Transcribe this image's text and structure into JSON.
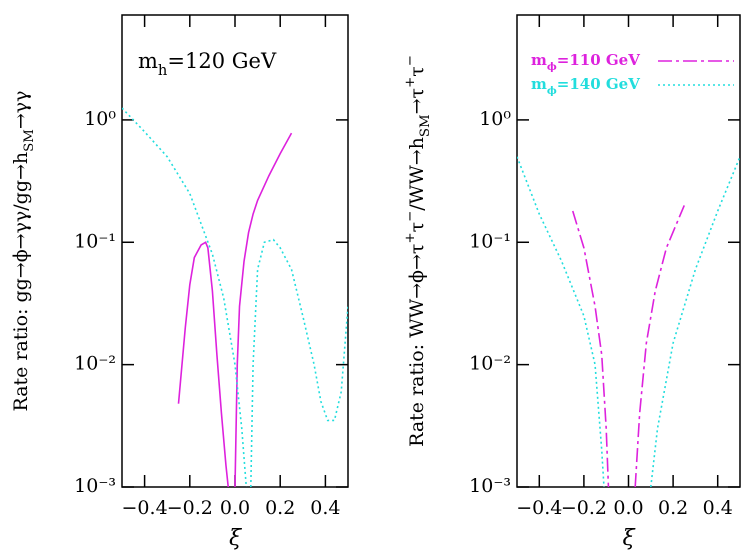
{
  "chart_data": [
    {
      "type": "line",
      "scale": "log",
      "xlabel": "ξ",
      "ylabel": [
        {
          "text": "Rate ratio: gg→ϕ→γγ/gg→h"
        },
        {
          "text": "SM",
          "shift": "sub"
        },
        {
          "text": "→γγ"
        }
      ],
      "annotation": [
        {
          "text": "m"
        },
        {
          "text": "h",
          "shift": "sub"
        },
        {
          "text": "=120 GeV"
        }
      ],
      "xlim": [
        -0.5,
        0.5
      ],
      "ylim": [
        0.001,
        7.2
      ],
      "xticks": [
        {
          "value": -0.4,
          "label": "−0.4"
        },
        {
          "value": -0.2,
          "label": "−0.2"
        },
        {
          "value": 0.0,
          "label": "0.0"
        },
        0.2,
        0.4
      ],
      "yticks": [
        {
          "value": 0.001,
          "label": "10⁻³"
        },
        {
          "value": 0.01,
          "label": "10⁻²"
        },
        {
          "value": 0.1,
          "label": "10⁻¹"
        },
        {
          "value": 1,
          "label": "10⁰"
        }
      ],
      "series": [
        {
          "color": "#dd22dd",
          "style": "solid",
          "x": [
            -0.25,
            -0.22,
            -0.2,
            -0.18,
            -0.15,
            -0.13,
            -0.12,
            -0.1,
            -0.08,
            -0.06,
            -0.04,
            -0.03,
            -0.015,
            0.0,
            0.01,
            0.02,
            0.04,
            0.06,
            0.08,
            0.1,
            0.15,
            0.2,
            0.25
          ],
          "values": [
            0.0048,
            0.02,
            0.045,
            0.075,
            0.095,
            0.1,
            0.09,
            0.04,
            0.012,
            0.004,
            0.0015,
            0.001,
            null,
            0.001,
            0.01,
            0.03,
            0.07,
            0.12,
            0.17,
            0.22,
            0.35,
            0.53,
            0.78
          ]
        },
        {
          "color": "#22dddd",
          "style": "dotted",
          "x": [
            -0.5,
            -0.4,
            -0.3,
            -0.2,
            -0.1,
            -0.05,
            0.0,
            0.03,
            0.05,
            0.06,
            0.07,
            0.08,
            0.1,
            0.13,
            0.17,
            0.2,
            0.25,
            0.3,
            0.35,
            0.38,
            0.41,
            0.44,
            0.47,
            0.5
          ],
          "values": [
            1.25,
            0.8,
            0.5,
            0.25,
            0.08,
            0.035,
            0.01,
            0.003,
            0.001,
            null,
            0.001,
            0.01,
            0.06,
            0.1,
            0.105,
            0.09,
            0.06,
            0.025,
            0.01,
            0.005,
            0.0035,
            0.0035,
            0.006,
            0.03
          ]
        }
      ]
    },
    {
      "type": "line",
      "scale": "log",
      "xlabel": "ξ",
      "legend": "upper right",
      "ylabel": [
        {
          "text": "Rate ratio: WW→ϕ→τ"
        },
        {
          "text": "+",
          "shift": "sup"
        },
        {
          "text": "τ"
        },
        {
          "text": "−",
          "shift": "sup"
        },
        {
          "text": "/WW→h"
        },
        {
          "text": "SM",
          "shift": "sub"
        },
        {
          "text": "→τ"
        },
        {
          "text": "+",
          "shift": "sup"
        },
        {
          "text": "τ"
        },
        {
          "text": "−",
          "shift": "sup"
        }
      ],
      "xlim": [
        -0.5,
        0.5
      ],
      "ylim": [
        0.001,
        7.2
      ],
      "xticks": [
        {
          "value": -0.4,
          "label": "−0.4"
        },
        {
          "value": -0.2,
          "label": "−0.2"
        },
        {
          "value": 0.0,
          "label": "0.0"
        },
        0.2,
        0.4
      ],
      "yticks": [
        {
          "value": 0.001,
          "label": "10⁻³"
        },
        {
          "value": 0.01,
          "label": "10⁻²"
        },
        {
          "value": 0.1,
          "label": "10⁻¹"
        },
        {
          "value": 1,
          "label": "10⁰"
        }
      ],
      "series": [
        {
          "name": [
            {
              "text": "m"
            },
            {
              "text": "ϕ",
              "shift": "sub"
            },
            {
              "text": "=110 GeV"
            }
          ],
          "color": "#dd22dd",
          "style": "dashdot",
          "x": [
            -0.25,
            -0.2,
            -0.15,
            -0.12,
            -0.1,
            -0.09,
            0.0,
            0.03,
            0.05,
            0.08,
            0.12,
            0.17,
            0.25
          ],
          "values": [
            0.18,
            0.09,
            0.03,
            0.012,
            0.003,
            0.001,
            null,
            0.001,
            0.004,
            0.015,
            0.04,
            0.09,
            0.2
          ]
        },
        {
          "name": [
            {
              "text": "m"
            },
            {
              "text": "ϕ",
              "shift": "sub"
            },
            {
              "text": "=140 GeV"
            }
          ],
          "color": "#22dddd",
          "style": "dotted",
          "x": [
            -0.5,
            -0.4,
            -0.3,
            -0.2,
            -0.15,
            -0.12,
            -0.11,
            0.0,
            0.1,
            0.13,
            0.2,
            0.3,
            0.4,
            0.5
          ],
          "values": [
            0.5,
            0.17,
            0.07,
            0.025,
            0.01,
            0.002,
            0.001,
            null,
            0.001,
            0.003,
            0.015,
            0.06,
            0.18,
            0.5
          ]
        }
      ]
    }
  ]
}
